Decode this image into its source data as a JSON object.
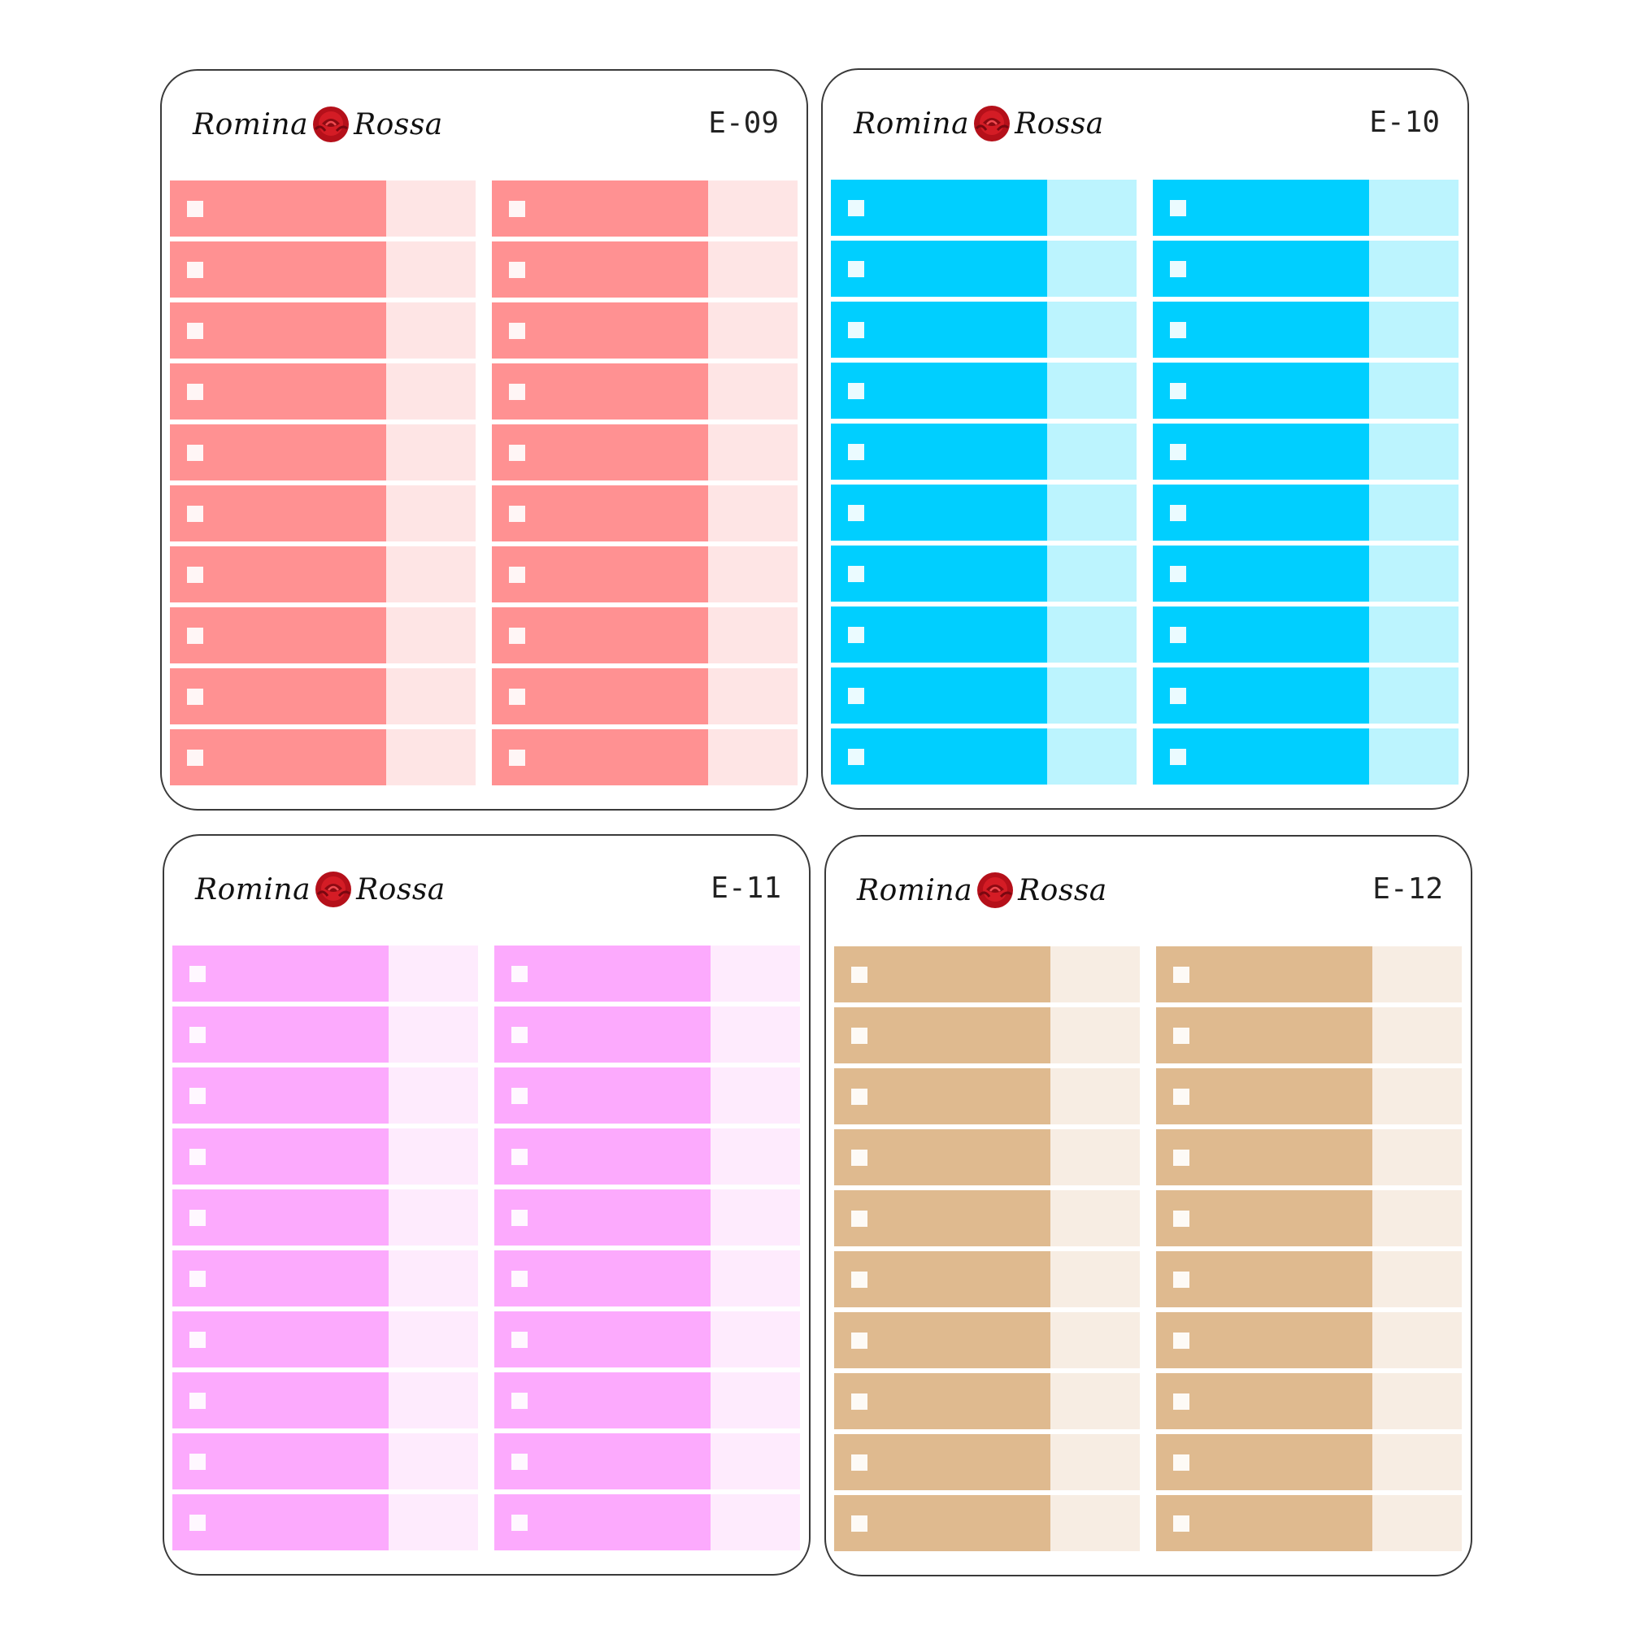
{
  "brand": {
    "first": "Romina",
    "second": "Rossa",
    "icon": "rose-icon"
  },
  "sheets": [
    {
      "code": "E-09",
      "dark_color": "#ff9192",
      "light_color": "#fee5e5"
    },
    {
      "code": "E-10",
      "dark_color": "#00cfff",
      "light_color": "#bcf4fe"
    },
    {
      "code": "E-11",
      "dark_color": "#fcaafd",
      "light_color": "#feebfd"
    },
    {
      "code": "E-12",
      "dark_color": "#dfba8f",
      "light_color": "#f7ede3"
    }
  ],
  "columns_per_sheet": 2,
  "rows_per_column": 10
}
